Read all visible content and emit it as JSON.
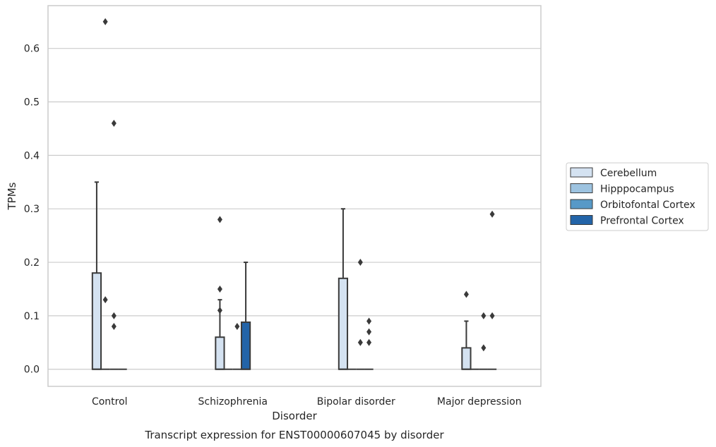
{
  "chart_data": {
    "type": "box",
    "title": "Transcript expression for ENST00000607045 by disorder",
    "xlabel": "Disorder",
    "ylabel": "TPMs",
    "ylim": [
      -0.032,
      0.68
    ],
    "yticks": [
      "0.0",
      "0.1",
      "0.2",
      "0.3",
      "0.4",
      "0.5",
      "0.6"
    ],
    "grid": "horizontal",
    "legend_position": "right",
    "categories": [
      "Control",
      "Schizophrenia",
      "Bipolar disorder",
      "Major depression"
    ],
    "series": [
      {
        "name": "Cerebellum",
        "color": "#d4e2f1",
        "boxes": [
          {
            "q1": 0,
            "median": 0,
            "q3": 0.18,
            "whisker_low": 0,
            "whisker_high": 0.35,
            "outliers": []
          },
          {
            "q1": 0,
            "median": 0,
            "q3": 0.06,
            "whisker_low": 0,
            "whisker_high": 0.13,
            "outliers": [
              0.28,
              0.15,
              0.11
            ]
          },
          {
            "q1": 0,
            "median": 0,
            "q3": 0.17,
            "whisker_low": 0,
            "whisker_high": 0.3,
            "outliers": []
          },
          {
            "q1": 0,
            "median": 0,
            "q3": 0.04,
            "whisker_low": 0,
            "whisker_high": 0.09,
            "outliers": [
              0.14
            ]
          }
        ]
      },
      {
        "name": "Hipppocampus",
        "color": "#9dc3e0",
        "boxes": [
          {
            "q1": 0,
            "median": 0,
            "q3": 0,
            "whisker_low": 0,
            "whisker_high": 0,
            "outliers": [
              0.13,
              0.65
            ]
          },
          {
            "q1": 0,
            "median": 0,
            "q3": 0,
            "whisker_low": 0,
            "whisker_high": 0,
            "outliers": []
          },
          {
            "q1": 0,
            "median": 0,
            "q3": 0,
            "whisker_low": 0,
            "whisker_high": 0,
            "outliers": []
          },
          {
            "q1": 0,
            "median": 0,
            "q3": 0,
            "whisker_low": 0,
            "whisker_high": 0,
            "outliers": []
          }
        ]
      },
      {
        "name": "Orbitofontal Cortex",
        "color": "#5799c7",
        "boxes": [
          {
            "q1": 0,
            "median": 0,
            "q3": 0,
            "whisker_low": 0,
            "whisker_high": 0,
            "outliers": [
              0.46,
              0.1,
              0.08
            ]
          },
          {
            "q1": 0,
            "median": 0,
            "q3": 0,
            "whisker_low": 0,
            "whisker_high": 0,
            "outliers": [
              0.08
            ]
          },
          {
            "q1": 0,
            "median": 0,
            "q3": 0,
            "whisker_low": 0,
            "whisker_high": 0,
            "outliers": [
              0.2,
              0.05
            ]
          },
          {
            "q1": 0,
            "median": 0,
            "q3": 0,
            "whisker_low": 0,
            "whisker_high": 0,
            "outliers": [
              0.1,
              0.04
            ]
          }
        ]
      },
      {
        "name": "Prefrontal Cortex",
        "color": "#2364a8",
        "boxes": [
          {
            "q1": 0,
            "median": 0,
            "q3": 0,
            "whisker_low": 0,
            "whisker_high": 0,
            "outliers": []
          },
          {
            "q1": 0,
            "median": 0,
            "q3": 0.088,
            "whisker_low": 0,
            "whisker_high": 0.2,
            "outliers": []
          },
          {
            "q1": 0,
            "median": 0,
            "q3": 0,
            "whisker_low": 0,
            "whisker_high": 0,
            "outliers": [
              0.09,
              0.07,
              0.05
            ]
          },
          {
            "q1": 0,
            "median": 0,
            "q3": 0,
            "whisker_low": 0,
            "whisker_high": 0,
            "outliers": [
              0.29,
              0.1
            ]
          }
        ]
      }
    ]
  }
}
